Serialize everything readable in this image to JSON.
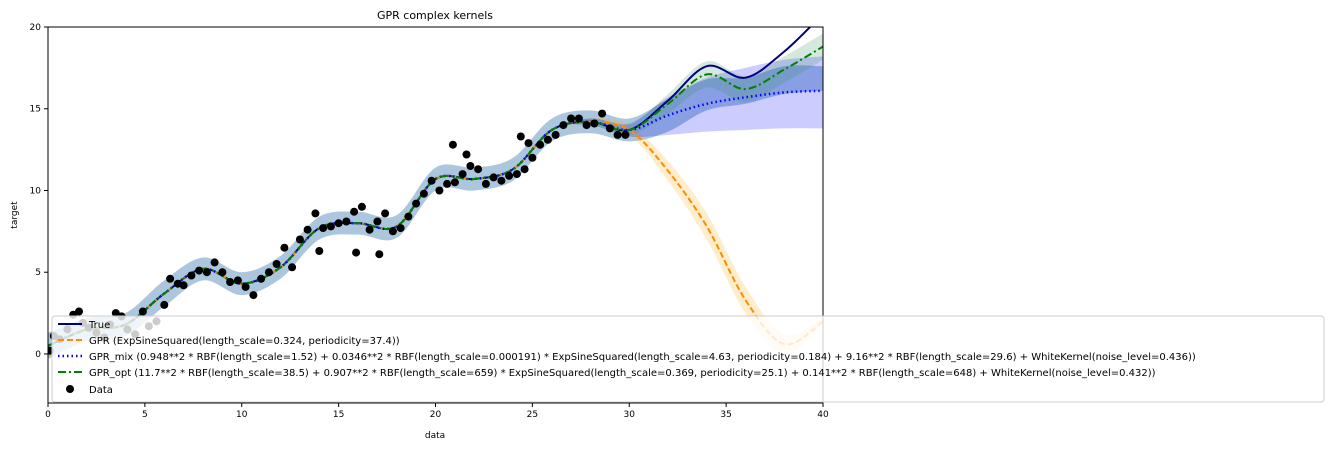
{
  "chart_data": {
    "type": "line",
    "title": "GPR complex kernels",
    "xlabel": "data",
    "ylabel": "target",
    "xlim": [
      0,
      40
    ],
    "ylim": [
      -3,
      20
    ],
    "x_ticks": [
      0,
      5,
      10,
      15,
      20,
      25,
      30,
      35,
      40
    ],
    "y_ticks": [
      0,
      5,
      10,
      15,
      20
    ],
    "grid": false,
    "legend_position": "lower-left",
    "colors": {
      "true": "#000080",
      "gpr": "#ff8c00",
      "gpr_mix": "#0000ff",
      "gpr_opt": "#008000",
      "data": "#000000",
      "band_true": "#4682b4",
      "band_gpr": "#ffa500",
      "band_mix": "#0000ff",
      "band_opt": "#2e8b57"
    },
    "x": [
      0,
      2,
      4,
      6,
      8,
      10,
      12,
      14,
      16,
      18,
      20,
      22,
      24,
      26,
      28,
      30,
      32,
      34,
      36,
      38,
      40
    ],
    "series": [
      {
        "name": "True",
        "style": "solid",
        "values": [
          0.5,
          1.5,
          1.8,
          3.7,
          5.2,
          4.3,
          5.3,
          7.7,
          8.0,
          7.8,
          10.7,
          10.7,
          11.3,
          13.7,
          14.2,
          13.7,
          15.5,
          17.6,
          16.9,
          18.5,
          20.8
        ]
      },
      {
        "name": "GPR (ExpSineSquared(length_scale=0.324, periodicity=37.4))",
        "style": "dashed",
        "values": [
          0.5,
          1.5,
          1.8,
          3.7,
          5.2,
          4.3,
          5.3,
          7.7,
          8.0,
          7.8,
          10.7,
          10.7,
          11.3,
          13.7,
          14.2,
          13.7,
          11.2,
          7.8,
          3.3,
          0.6,
          2.0
        ]
      },
      {
        "name": "GPR_mix (0.948**2 * RBF(length_scale=1.52) + 0.0346**2 * RBF(length_scale=0.000191) * ExpSineSquared(length_scale=4.63, periodicity=0.184) + 9.16**2 * RBF(length_scale=29.6) + WhiteKernel(noise_level=0.436))",
        "style": "dotted",
        "values": [
          0.5,
          1.5,
          1.8,
          3.7,
          5.2,
          4.3,
          5.3,
          7.7,
          8.0,
          7.8,
          10.7,
          10.7,
          11.3,
          13.7,
          14.2,
          13.7,
          14.6,
          15.3,
          15.7,
          16.0,
          16.1
        ]
      },
      {
        "name": "GPR_opt (11.7**2 * RBF(length_scale=38.5) + 0.907**2 * RBF(length_scale=659) * ExpSineSquared(length_scale=0.369, periodicity=25.1) + 0.141**2 * RBF(length_scale=648) + WhiteKernel(noise_level=0.432))",
        "style": "dashdot",
        "values": [
          0.5,
          1.5,
          1.8,
          3.7,
          5.2,
          4.3,
          5.3,
          7.7,
          8.0,
          7.8,
          10.7,
          10.7,
          11.3,
          13.7,
          14.2,
          13.7,
          15.3,
          17.1,
          16.2,
          17.4,
          18.8
        ]
      }
    ],
    "bands": [
      {
        "series": 0,
        "lower": [
          -0.3,
          0.8,
          1.1,
          2.9,
          4.5,
          3.6,
          4.6,
          7.0,
          7.3,
          7.1,
          10.0,
          10.0,
          10.6,
          13.0,
          13.5,
          13.0,
          13.6,
          14.9,
          15.3,
          15.9,
          16.1
        ],
        "upper": [
          1.3,
          2.2,
          2.5,
          4.5,
          5.9,
          5.0,
          6.0,
          8.4,
          8.7,
          8.5,
          11.4,
          11.4,
          12.0,
          14.4,
          14.9,
          14.4,
          15.6,
          16.8,
          16.9,
          17.6,
          17.6
        ]
      },
      {
        "series": 1,
        "lower": [
          0.5,
          1.5,
          1.8,
          3.7,
          5.2,
          4.3,
          5.3,
          7.7,
          8.0,
          7.8,
          10.7,
          10.7,
          11.3,
          13.7,
          14.0,
          13.4,
          10.6,
          7.0,
          2.5,
          0.0,
          1.8
        ],
        "upper": [
          0.5,
          1.5,
          1.8,
          3.7,
          5.2,
          4.3,
          5.3,
          7.7,
          8.0,
          7.8,
          10.7,
          10.7,
          11.3,
          13.7,
          14.4,
          14.0,
          11.8,
          8.6,
          4.1,
          1.2,
          2.2
        ]
      },
      {
        "series": 2,
        "lower": [
          0.5,
          1.5,
          1.8,
          3.7,
          5.2,
          4.3,
          5.3,
          7.7,
          8.0,
          7.8,
          10.7,
          10.7,
          11.3,
          13.7,
          14.0,
          13.3,
          13.4,
          13.6,
          13.7,
          13.8,
          13.8
        ],
        "upper": [
          0.5,
          1.5,
          1.8,
          3.7,
          5.2,
          4.3,
          5.3,
          7.7,
          8.0,
          7.8,
          10.7,
          10.7,
          11.3,
          13.7,
          14.4,
          14.1,
          15.7,
          16.9,
          17.5,
          18.0,
          18.2
        ]
      },
      {
        "series": 3,
        "lower": [
          0.5,
          1.5,
          1.8,
          3.7,
          5.2,
          4.3,
          5.3,
          7.7,
          8.0,
          7.8,
          10.7,
          10.7,
          11.3,
          13.7,
          14.0,
          13.4,
          14.7,
          16.3,
          15.4,
          16.6,
          18.0
        ],
        "upper": [
          0.5,
          1.5,
          1.8,
          3.7,
          5.2,
          4.3,
          5.3,
          7.7,
          8.0,
          7.8,
          10.7,
          10.7,
          11.3,
          13.7,
          14.4,
          14.0,
          15.9,
          17.9,
          17.0,
          18.2,
          19.6
        ]
      }
    ],
    "scatter": {
      "name": "Data",
      "x": [
        0.1,
        0.3,
        0.6,
        1.0,
        1.3,
        1.6,
        1.8,
        2.1,
        2.5,
        2.9,
        3.2,
        3.5,
        3.8,
        4.1,
        4.5,
        4.9,
        5.2,
        5.6,
        6.0,
        6.3,
        6.7,
        7.0,
        7.4,
        7.8,
        8.2,
        8.6,
        9.0,
        9.4,
        9.8,
        10.2,
        10.6,
        11.0,
        11.4,
        11.8,
        12.2,
        12.6,
        13.0,
        13.4,
        13.8,
        14.2,
        14.6,
        15.0,
        15.4,
        15.8,
        16.2,
        16.6,
        17.0,
        17.4,
        17.8,
        18.2,
        18.6,
        19.0,
        19.4,
        19.8,
        20.2,
        20.6,
        21.0,
        21.4,
        21.8,
        22.2,
        22.6,
        23.0,
        23.4,
        23.8,
        24.2,
        24.6,
        25.0,
        25.4,
        25.8,
        26.2,
        26.6,
        27.0,
        27.4,
        27.8,
        28.2,
        28.6,
        29.0,
        29.4,
        29.8,
        14.0,
        17.1,
        15.9,
        20.9,
        21.6,
        24.4,
        24.8
      ],
      "y": [
        0.2,
        1.1,
        0.9,
        1.5,
        2.4,
        2.6,
        1.9,
        1.6,
        1.3,
        1.0,
        1.8,
        2.5,
        2.3,
        1.5,
        1.2,
        2.6,
        1.7,
        2.0,
        3.0,
        4.6,
        4.3,
        4.2,
        4.8,
        5.1,
        5.0,
        5.6,
        5.0,
        4.4,
        4.5,
        4.1,
        3.6,
        4.6,
        5.0,
        5.5,
        6.5,
        5.3,
        7.0,
        7.6,
        8.6,
        7.7,
        7.8,
        8.0,
        8.1,
        8.7,
        9.0,
        7.6,
        8.1,
        8.6,
        7.5,
        7.7,
        8.4,
        9.2,
        9.8,
        10.6,
        10.0,
        10.4,
        10.5,
        11.0,
        11.5,
        11.3,
        10.4,
        10.8,
        10.6,
        10.9,
        11.0,
        11.3,
        12.0,
        12.8,
        13.1,
        13.4,
        14.0,
        14.4,
        14.4,
        14.0,
        14.1,
        14.7,
        13.8,
        13.4,
        13.4,
        6.3,
        6.1,
        6.2,
        12.8,
        12.2,
        13.3,
        12.9
      ]
    }
  }
}
